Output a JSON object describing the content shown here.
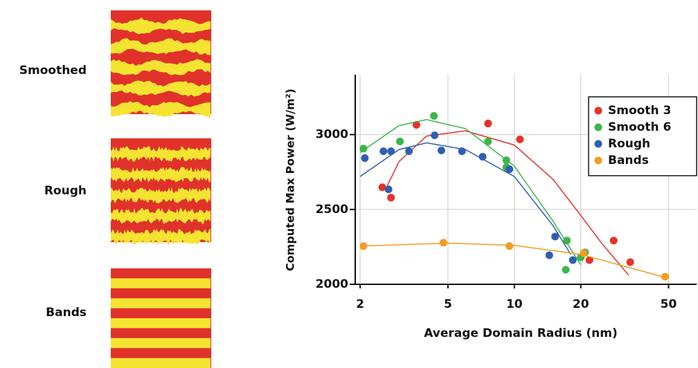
{
  "panels": [
    {
      "label": "Smoothed"
    },
    {
      "label": "Rough"
    },
    {
      "label": "Bands"
    }
  ],
  "chart_data": {
    "type": "scatter",
    "x_label": "Average Domain Radius (nm)",
    "y_label": "Computed Max Power (W/m²)",
    "xscale": "log",
    "xlim": [
      1.9,
      67
    ],
    "ylim": [
      2000,
      3400
    ],
    "xticks": [
      2,
      5,
      10,
      20,
      50
    ],
    "yticks": [
      2000,
      2500,
      3000
    ],
    "grid": true,
    "legend": "top-right",
    "series": [
      {
        "name": "Smooth 3",
        "color": "#e8312a",
        "x": [
          2.52,
          2.76,
          3.6,
          7.6,
          10.6,
          21.9,
          28.2,
          33.5
        ],
        "values": [
          2648,
          2579,
          3065,
          3074,
          2968,
          2162,
          2292,
          2148
        ],
        "fit": {
          "x": [
            2.6,
            3,
            4,
            6,
            10,
            15,
            20,
            25,
            33
          ],
          "values": [
            2630,
            2820,
            2990,
            3025,
            2930,
            2700,
            2460,
            2270,
            2060
          ]
        }
      },
      {
        "name": "Smooth 6",
        "color": "#3cb54a",
        "x": [
          2.07,
          3.03,
          4.32,
          7.6,
          9.2,
          9.2,
          17.3,
          17.1,
          20,
          20.9
        ],
        "values": [
          2907,
          2954,
          3125,
          2954,
          2829,
          2782,
          2292,
          2097,
          2180,
          2213
        ],
        "fit": {
          "x": [
            2,
            3,
            4,
            6,
            10,
            15,
            20
          ],
          "values": [
            2880,
            3060,
            3100,
            3040,
            2790,
            2420,
            2130
          ]
        }
      },
      {
        "name": "Rough",
        "color": "#2f5fb3",
        "x": [
          2.1,
          2.55,
          2.76,
          3.33,
          4.35,
          4.67,
          5.79,
          7.18,
          9.5,
          14.4,
          15.3,
          18.4,
          2.69
        ],
        "values": [
          2843,
          2889,
          2889,
          2889,
          2995,
          2894,
          2889,
          2852,
          2769,
          2194,
          2319,
          2162,
          2634
        ],
        "fit": {
          "x": [
            2,
            3,
            4,
            6,
            10,
            15,
            18
          ],
          "values": [
            2720,
            2900,
            2945,
            2900,
            2720,
            2390,
            2200
          ]
        }
      },
      {
        "name": "Bands",
        "color": "#f39c1f",
        "x": [
          2.07,
          4.77,
          9.5,
          20.6,
          48.2
        ],
        "values": [
          2255,
          2278,
          2255,
          2208,
          2051
        ],
        "fit": {
          "x": [
            2,
            5,
            10,
            20,
            50
          ],
          "values": [
            2255,
            2275,
            2260,
            2200,
            2040
          ]
        }
      }
    ]
  }
}
